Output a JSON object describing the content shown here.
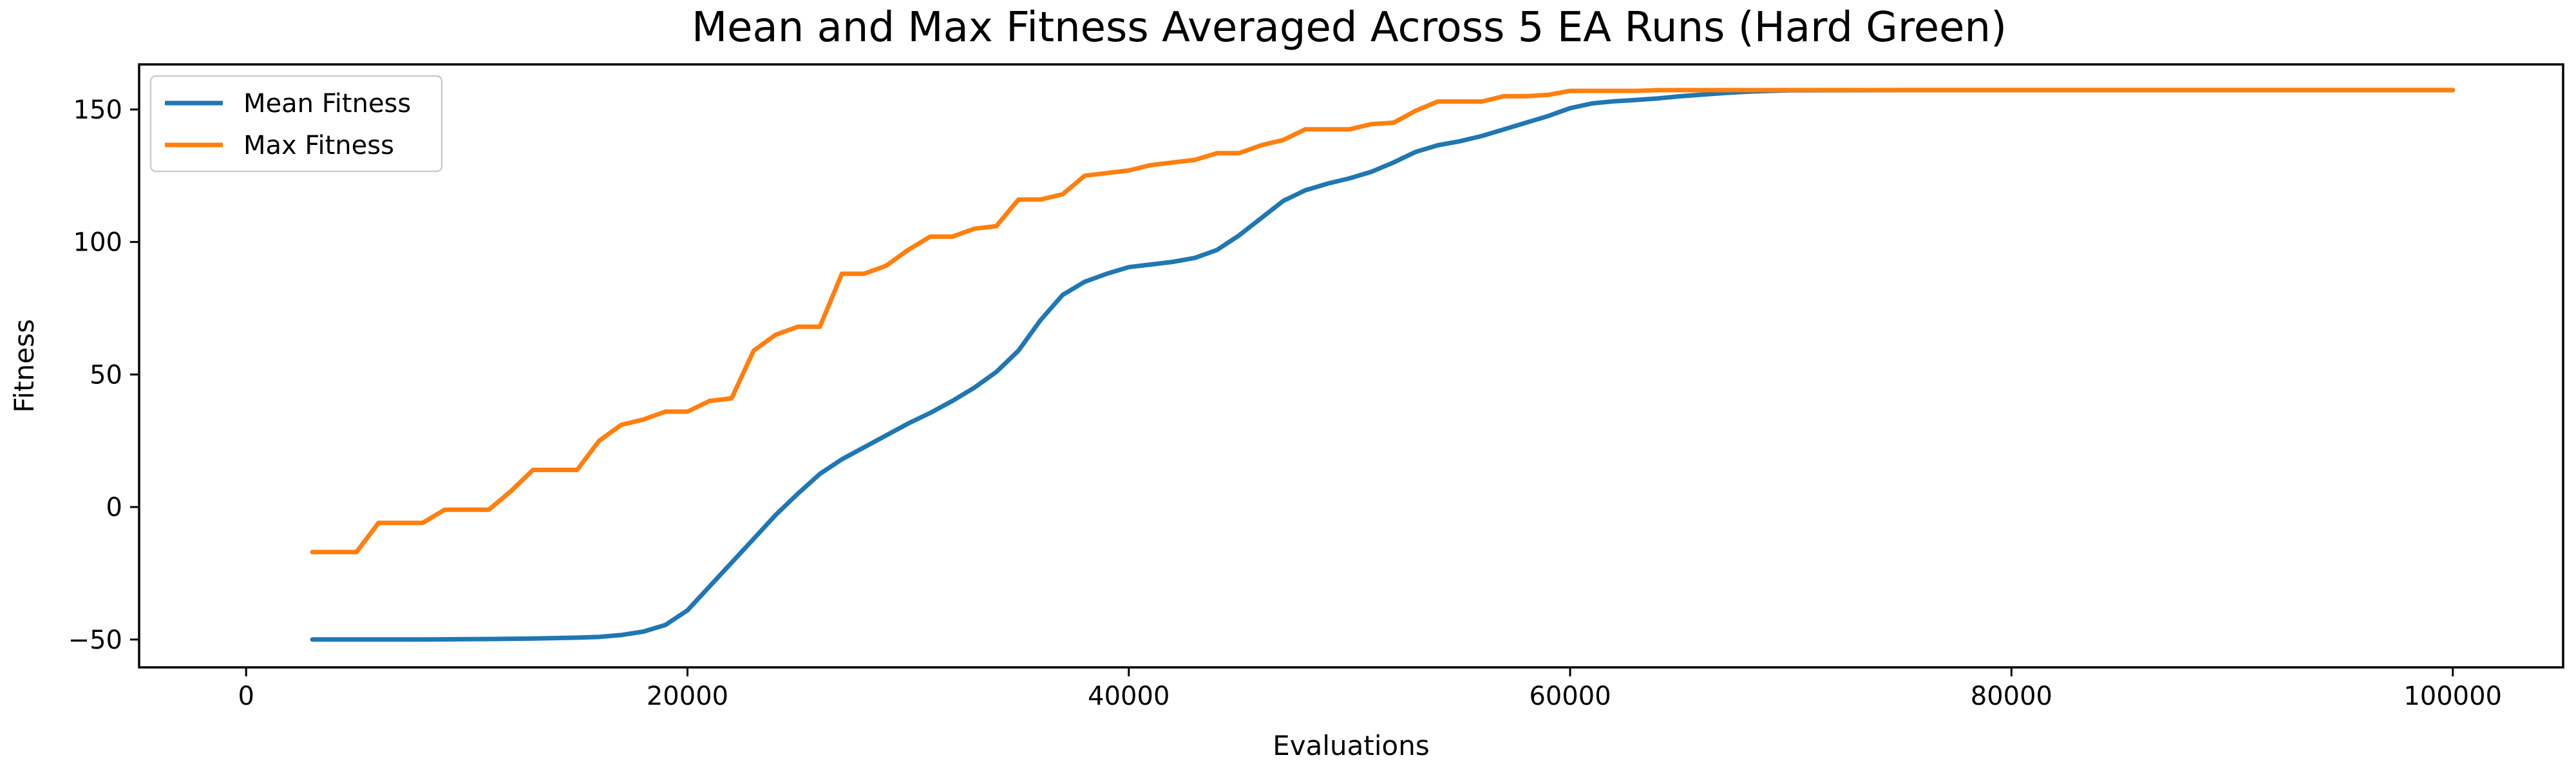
{
  "chart_data": {
    "type": "line",
    "title": "Mean and Max Fitness Averaged Across 5 EA Runs (Hard Green)",
    "xlabel": "Evaluations",
    "ylabel": "Fitness",
    "xlim": [
      -4850,
      105000
    ],
    "ylim": [
      -60.5,
      167
    ],
    "xticks": [
      0,
      20000,
      40000,
      60000,
      80000,
      100000
    ],
    "xtick_labels": [
      "0",
      "20000",
      "40000",
      "60000",
      "80000",
      "100000"
    ],
    "yticks": [
      -50,
      0,
      50,
      100,
      150
    ],
    "ytick_labels": [
      "−50",
      "0",
      "50",
      "100",
      "150"
    ],
    "grid": false,
    "legend_position": "top-left",
    "series": [
      {
        "name": "Mean Fitness",
        "color": "#1f77b4",
        "x": [
          3000,
          5000,
          8000,
          11000,
          13000,
          15000,
          16000,
          17000,
          18000,
          19000,
          20000,
          21000,
          22000,
          23000,
          24000,
          25000,
          26000,
          27000,
          28000,
          29000,
          30000,
          31000,
          32000,
          33000,
          34000,
          35000,
          36000,
          37000,
          38000,
          39000,
          40000,
          41000,
          42000,
          43000,
          44000,
          45000,
          46000,
          47000,
          48000,
          49000,
          50000,
          51000,
          52000,
          53000,
          54000,
          55000,
          56000,
          57000,
          58000,
          59000,
          60000,
          61000,
          62000,
          63000,
          64000,
          65000,
          66000,
          67000,
          68000,
          69000,
          70000,
          75000,
          80000,
          90000,
          100000
        ],
        "y": [
          -50,
          -50,
          -50,
          -49.8,
          -49.6,
          -49.3,
          -49,
          -48.3,
          -47,
          -44.5,
          -39,
          -30,
          -21,
          -12,
          -3,
          5,
          12.5,
          18,
          22.5,
          27,
          31.5,
          35.5,
          40,
          45,
          51,
          59,
          70.5,
          80,
          85,
          88,
          90.5,
          91.5,
          92.5,
          94,
          97,
          102.5,
          109,
          115.5,
          119.5,
          122,
          124,
          126.5,
          130,
          134,
          136.5,
          138,
          140,
          142.5,
          145,
          147.5,
          150.5,
          152.3,
          153.1,
          153.6,
          154.2,
          155,
          155.6,
          156.2,
          156.7,
          157,
          157.2,
          157.3,
          157.3,
          157.3,
          157.3
        ]
      },
      {
        "name": "Max Fitness",
        "color": "#ff7f0e",
        "x": [
          3000,
          5000,
          6000,
          8000,
          9000,
          11000,
          12000,
          13000,
          15000,
          16000,
          17000,
          18000,
          19000,
          20000,
          21000,
          22000,
          23000,
          24000,
          25000,
          26000,
          27000,
          28000,
          29000,
          30000,
          31000,
          32000,
          33000,
          34000,
          35000,
          36000,
          37000,
          38000,
          39000,
          40000,
          41000,
          42000,
          43000,
          44000,
          45000,
          46000,
          47000,
          48000,
          49000,
          50000,
          51000,
          52000,
          53000,
          54000,
          55000,
          56000,
          57000,
          58000,
          59000,
          60000,
          61000,
          62000,
          63000,
          64000,
          65000,
          70000,
          80000,
          90000,
          100000
        ],
        "y": [
          -17,
          -17,
          -6,
          -6,
          -1,
          -1,
          6,
          14,
          14,
          25,
          31,
          33,
          36,
          36,
          40,
          41,
          59,
          65,
          68,
          68,
          88,
          88,
          91,
          97,
          102,
          102,
          105,
          106,
          116,
          116,
          118,
          125,
          126,
          127,
          129,
          130,
          131,
          133.5,
          133.5,
          136.5,
          138.5,
          142.5,
          142.5,
          142.5,
          144.5,
          145,
          149.5,
          153,
          153,
          153,
          155,
          155,
          155.5,
          157,
          157,
          157,
          157,
          157.3,
          157.3,
          157.3,
          157.3,
          157.3,
          157.3
        ]
      }
    ]
  }
}
